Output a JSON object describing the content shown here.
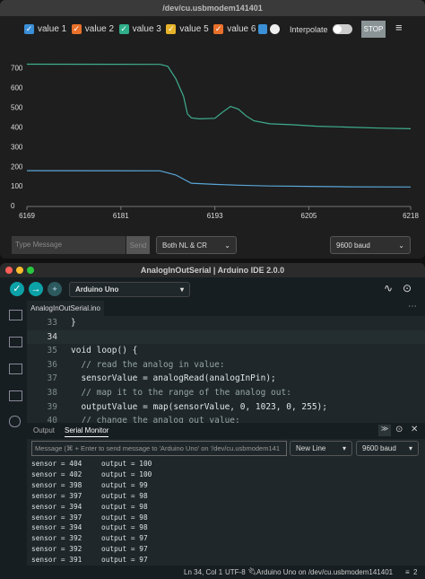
{
  "chart_data": {
    "type": "line",
    "xlim": [
      6169,
      6218
    ],
    "xticks": [
      6169,
      6181,
      6193,
      6205,
      6218
    ],
    "ylim": [
      0,
      780
    ],
    "yticks": [
      0,
      100,
      200,
      300,
      400,
      500,
      600,
      700
    ],
    "series": [
      {
        "color": "#3fae8e",
        "x": [
          6169,
          6186,
          6187,
          6188,
          6189,
          6189.5,
          6190,
          6191,
          6193,
          6194,
          6195,
          6196,
          6197,
          6198,
          6200,
          6203,
          6206,
          6210,
          6214,
          6218
        ],
        "values": [
          723,
          722,
          712,
          650,
          560,
          470,
          450,
          445,
          448,
          480,
          508,
          495,
          460,
          435,
          420,
          415,
          408,
          403,
          398,
          395
        ]
      },
      {
        "color": "#5aa6d6",
        "x": [
          6169,
          6186,
          6188,
          6190,
          6193,
          6196,
          6200,
          6205,
          6210,
          6218
        ],
        "values": [
          182,
          181,
          160,
          118,
          112,
          108,
          104,
          102,
          100,
          99
        ]
      }
    ]
  },
  "plotter": {
    "window_title": "/dev/cu.usbmodem141401",
    "legend": [
      {
        "name": "value 1",
        "color": "#3b8fd6"
      },
      {
        "name": "value 2",
        "color": "#e8702a"
      },
      {
        "name": "value 3",
        "color": "#2fae8a"
      },
      {
        "name": "value 5",
        "color": "#e8b32a"
      },
      {
        "name": "value 6",
        "color": "#e8702a"
      }
    ],
    "interpolate": "Interpolate",
    "stop": "STOP",
    "message_placeholder": "Type Message",
    "send": "Send",
    "line_ending": "Both NL & CR",
    "baud": "9600 baud"
  },
  "ide": {
    "window_title": "AnalogInOutSerial | Arduino IDE 2.0.0",
    "board": "Arduino Uno",
    "tab": "AnalogInOutSerial.ino",
    "code": [
      {
        "number": "33",
        "text": "}"
      },
      {
        "number": "34"
      },
      {
        "number": "35",
        "text": "void loop() {"
      },
      {
        "number": "36",
        "text": "  // read the analog in value:"
      },
      {
        "number": "37",
        "text": "  sensorValue = analogRead(analogInPin);"
      },
      {
        "number": "38",
        "text": "  // map it to the range of the analog out:"
      },
      {
        "number": "39",
        "text": "  outputValue = map(sensorValue, 0, 1023, 0, 255);"
      },
      {
        "number": "40",
        "text": "  // change the analog out value:"
      }
    ],
    "panel_tabs": [
      "Output",
      "Serial Monitor"
    ],
    "message_placeholder": "Message (⌘ + Enter to send message to 'Arduino Uno' on '/dev/cu.usbmodem141",
    "line_ending": "New Line",
    "baud": "9600 baud",
    "serial": [
      [
        "sensor = 404",
        "output = 100"
      ],
      [
        "sensor = 402",
        "output = 100"
      ],
      [
        "sensor = 398",
        "output = 99"
      ],
      [
        "sensor = 397",
        "output = 98"
      ],
      [
        "sensor = 394",
        "output = 98"
      ],
      [
        "sensor = 397",
        "output = 98"
      ],
      [
        "sensor = 394",
        "output = 98"
      ],
      [
        "sensor = 392",
        "output = 97"
      ],
      [
        "sensor = 392",
        "output = 97"
      ],
      [
        "sensor = 391",
        "output = 97"
      ]
    ],
    "status": {
      "position": "Ln 34, Col 1",
      "encoding": "UTF-8",
      "board": "Arduino Uno on /dev/cu.usbmodem141401",
      "count": "2"
    }
  }
}
